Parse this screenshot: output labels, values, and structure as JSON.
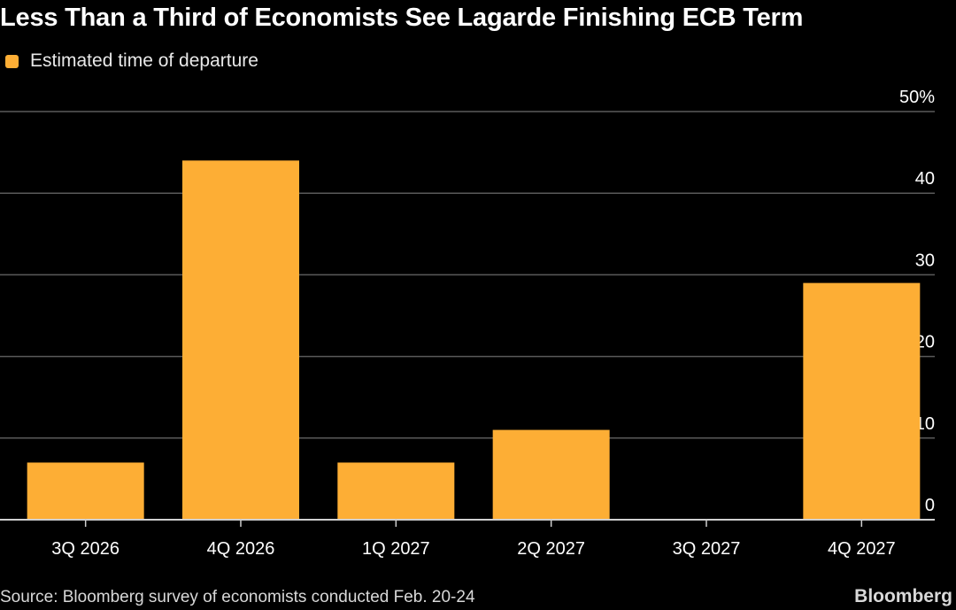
{
  "colors": {
    "bar": "#FDAE35",
    "background": "#000000",
    "grid": "#5a5a5a",
    "axis": "#cfcfcf",
    "text": "#ffffff"
  },
  "chart_data": {
    "type": "bar",
    "title": "Less Than a Third of Economists See Lagarde Finishing ECB Term",
    "series": [
      {
        "name": "Estimated time of departure",
        "values": [
          7,
          44,
          7,
          11,
          0,
          29
        ]
      }
    ],
    "categories": [
      "3Q 2026",
      "4Q 2026",
      "1Q 2027",
      "2Q 2027",
      "3Q 2027",
      "4Q 2027"
    ],
    "ylim": [
      0,
      50
    ],
    "yticks": [
      0,
      10,
      20,
      30,
      40,
      50
    ],
    "ytick_labels": [
      "0",
      "10",
      "20",
      "30",
      "40",
      "50%"
    ],
    "xlabel": "",
    "ylabel": "",
    "legend_position": "top-left",
    "grid": true,
    "source": "Source: Bloomberg survey of economists conducted Feb. 20-24",
    "brand": "Bloomberg"
  }
}
